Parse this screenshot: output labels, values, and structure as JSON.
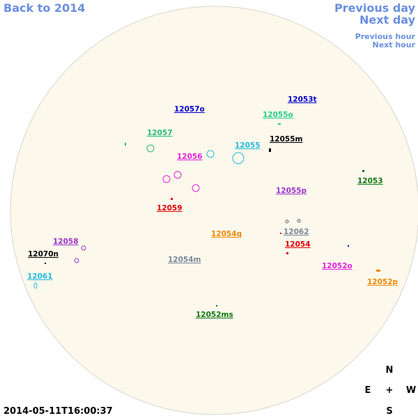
{
  "nav": {
    "back": "Back to 2014",
    "previous_day": "Previous day",
    "next_day": "Next day",
    "previous_hour": "Previous hour",
    "next_hour": "Next hour"
  },
  "groups": [
    {
      "label": "12053t",
      "color": "#0000cc"
    },
    {
      "label": "12057o",
      "color": "#0000cc"
    },
    {
      "label": "12055o",
      "color": "#22cc88"
    },
    {
      "label": "12057",
      "color": "#22bb77"
    },
    {
      "label": "12055m",
      "color": "#000000"
    },
    {
      "label": "12055",
      "color": "#22bbdd"
    },
    {
      "label": "12056",
      "color": "#dd22dd"
    },
    {
      "label": "12053",
      "color": "#117711"
    },
    {
      "label": "12055p",
      "color": "#9933cc"
    },
    {
      "label": "12059",
      "color": "#dd0000"
    },
    {
      "label": "12054q",
      "color": "#ee8800"
    },
    {
      "label": "12062",
      "color": "#778899"
    },
    {
      "label": "12058",
      "color": "#9933cc"
    },
    {
      "label": "12054",
      "color": "#dd0000"
    },
    {
      "label": "12070n",
      "color": "#000000"
    },
    {
      "label": "12054m",
      "color": "#778899"
    },
    {
      "label": "12052o",
      "color": "#dd22dd"
    },
    {
      "label": "12061",
      "color": "#22bbdd"
    },
    {
      "label": "12052p",
      "color": "#ee8800"
    },
    {
      "label": "12052ms",
      "color": "#117711"
    }
  ],
  "compass": {
    "north": "N",
    "east": "E",
    "center": "+",
    "west": "W",
    "south": "S"
  },
  "timestamp": "2014-05-11T16:00:37"
}
